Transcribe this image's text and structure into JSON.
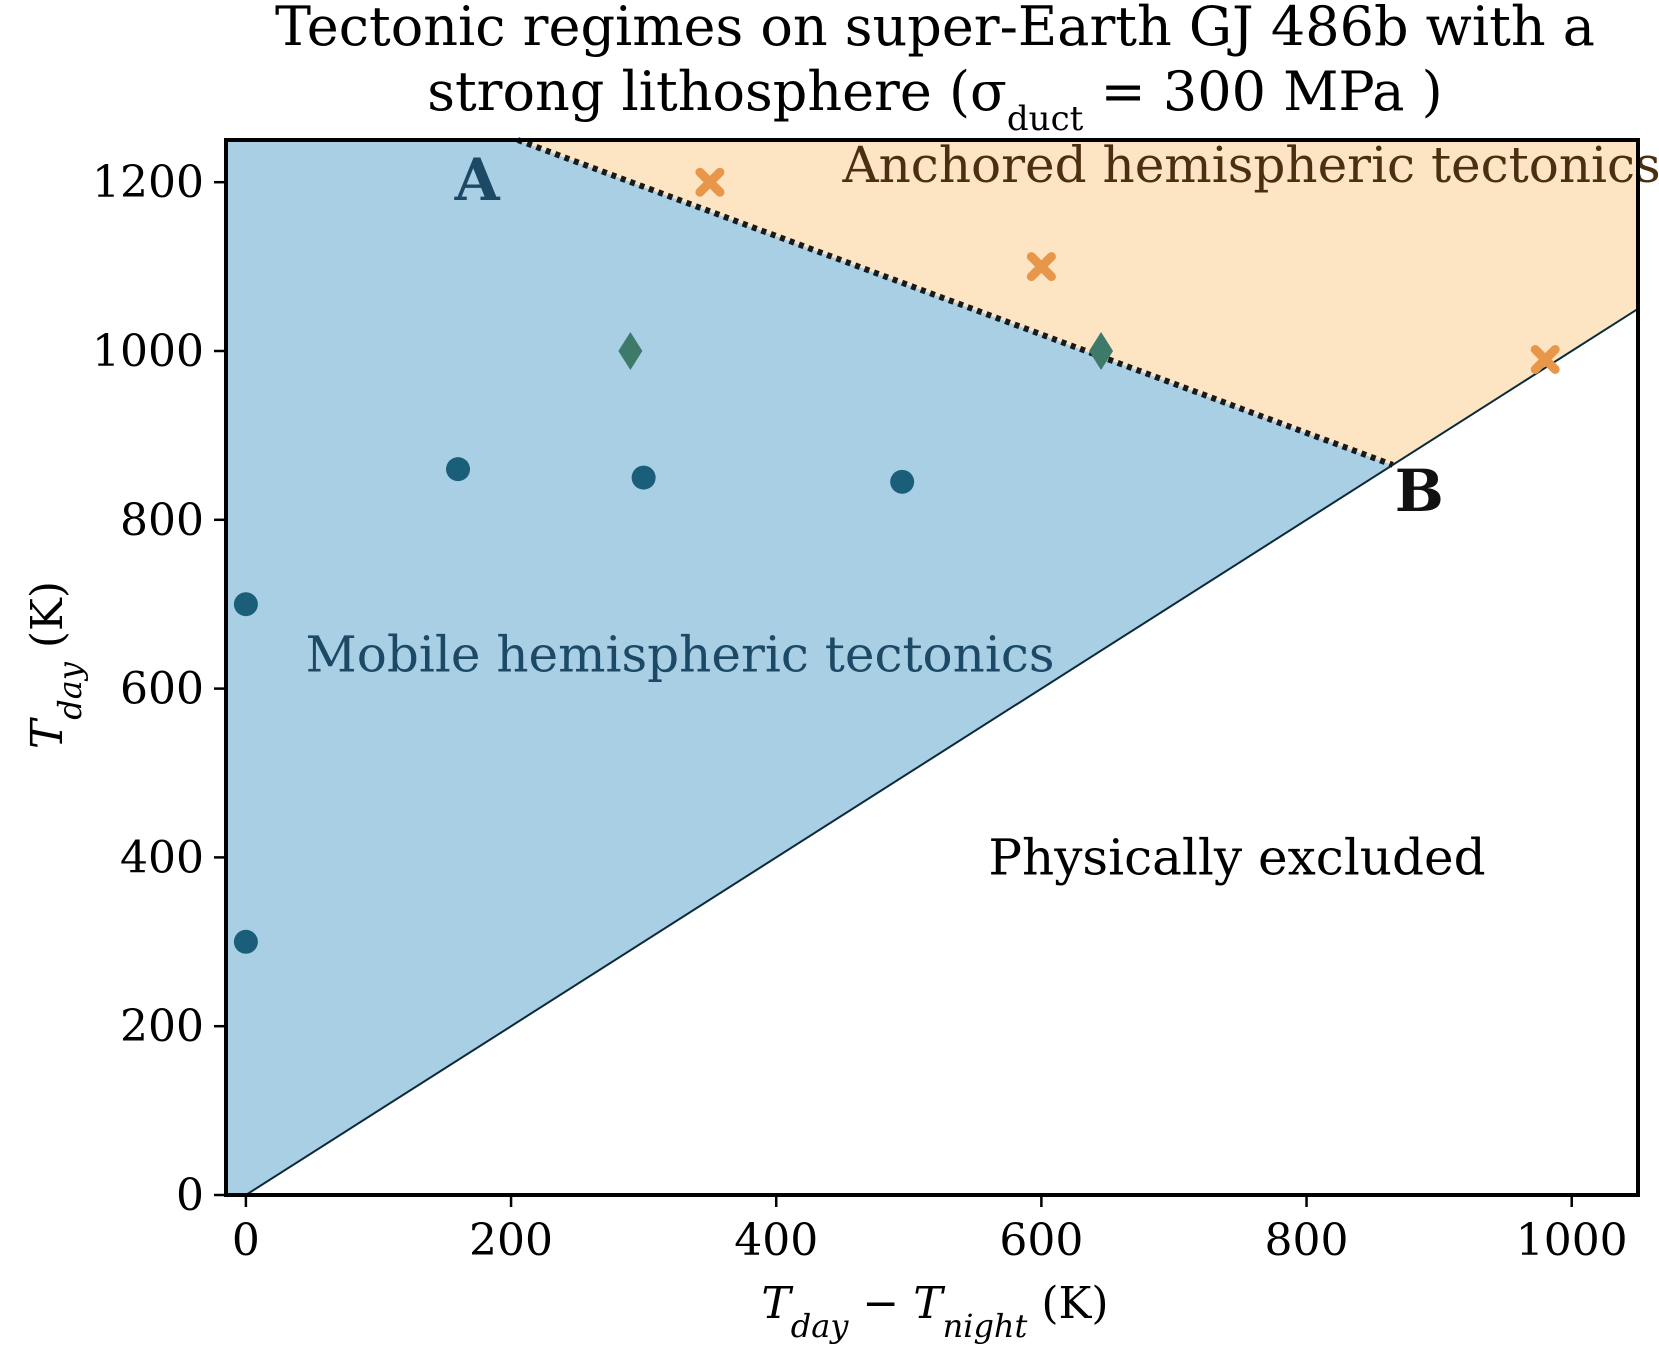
{
  "chart_data": {
    "type": "scatter",
    "title_line1": "Tectonic regimes on super-Earth GJ 486b with a",
    "title_line2_prefix": "strong lithosphere (σ",
    "title_line2_sub": "duct",
    "title_line2_suffix": " = 300 MPa )",
    "xlabel": {
      "t1": "T",
      "t1_sub": "day",
      "minus": " − ",
      "t2": "T",
      "t2_sub": "night",
      "unit": " (K)"
    },
    "ylabel": {
      "t": "T",
      "t_sub": "day",
      "unit": " (K)"
    },
    "xlim": [
      -15,
      1050
    ],
    "ylim": [
      0,
      1250
    ],
    "xticks": [
      0,
      200,
      400,
      600,
      800,
      1000
    ],
    "yticks": [
      0,
      200,
      400,
      600,
      800,
      1000,
      1200
    ],
    "grid": false,
    "regions": [
      {
        "name": "Mobile hemispheric tectonics",
        "color": "#a9cfe5",
        "label_color": "#1c4a66",
        "label_at": [
          45,
          620
        ]
      },
      {
        "name": "Anchored hemispheric tectonics",
        "color": "#fde4c2",
        "label_color": "#4a3010",
        "label_at": [
          450,
          1200
        ]
      },
      {
        "name": "Physically excluded",
        "color": "#ffffff",
        "label_color": "#000000",
        "label_at": [
          560,
          380
        ]
      }
    ],
    "boundary_AB": [
      [
        205,
        1250
      ],
      [
        865,
        865
      ]
    ],
    "exclusion_line": [
      [
        0,
        0
      ],
      [
        1050,
        1050
      ]
    ],
    "points_labeled": [
      {
        "label": "A",
        "x": 205,
        "y": 1250
      },
      {
        "label": "B",
        "x": 865,
        "y": 865
      }
    ],
    "series": [
      {
        "marker": "circle",
        "color": "#1a5e7a",
        "x": [
          0,
          0,
          160,
          300,
          495
        ],
        "y": [
          300,
          700,
          860,
          850,
          845
        ]
      },
      {
        "marker": "diamond",
        "color": "#3d7a6a",
        "x": [
          290,
          645
        ],
        "y": [
          1000,
          1000
        ]
      },
      {
        "marker": "x",
        "color": "#e8974a",
        "x": [
          350,
          600,
          980
        ],
        "y": [
          1200,
          1100,
          990
        ]
      }
    ]
  }
}
